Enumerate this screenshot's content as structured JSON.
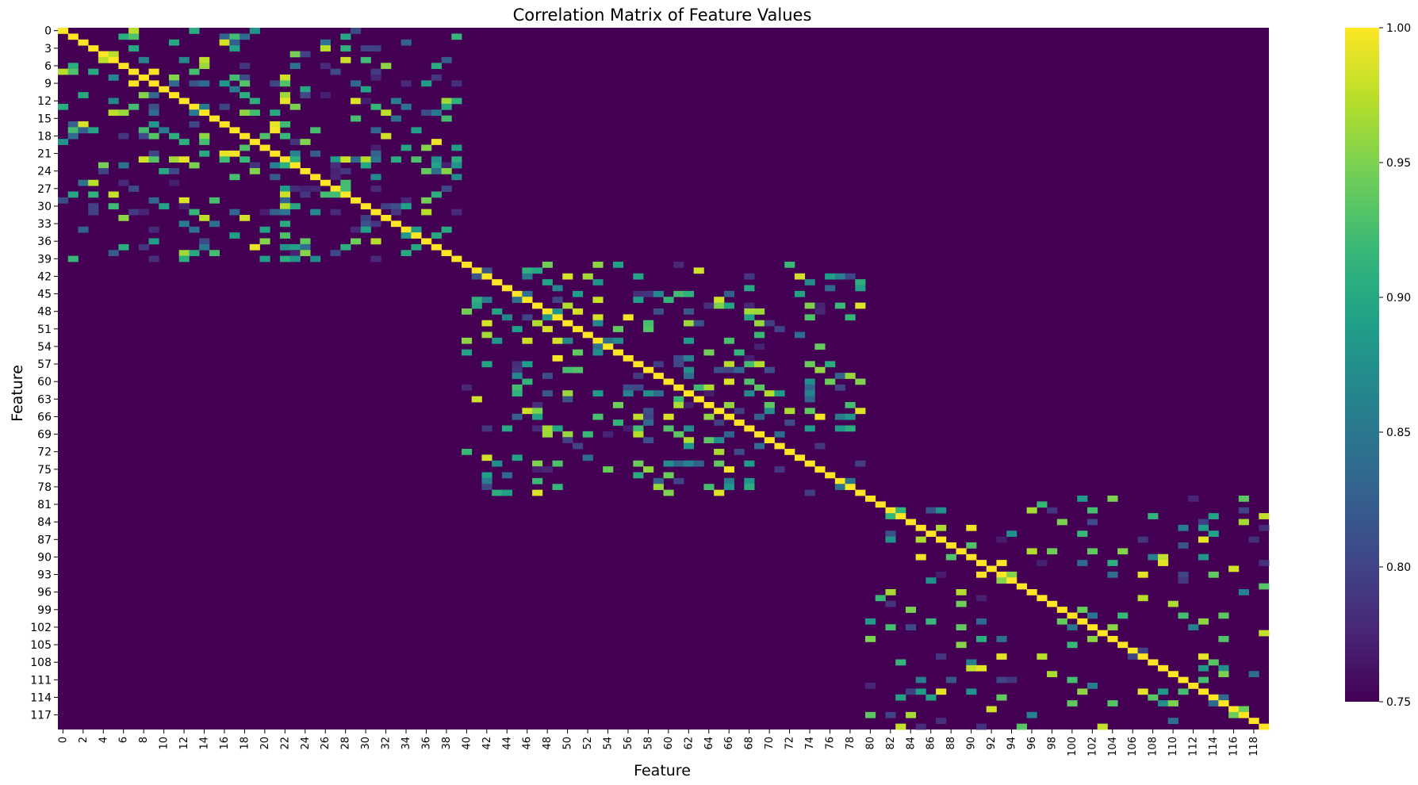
{
  "chart_data": {
    "type": "heatmap",
    "title": "Correlation Matrix of Feature Values",
    "xlabel": "Feature",
    "ylabel": "Feature",
    "n_features": 120,
    "x_tick_labels": [
      "0",
      "2",
      "4",
      "6",
      "8",
      "10",
      "12",
      "14",
      "16",
      "18",
      "20",
      "22",
      "24",
      "26",
      "28",
      "30",
      "32",
      "34",
      "36",
      "38",
      "40",
      "42",
      "44",
      "46",
      "48",
      "50",
      "52",
      "54",
      "56",
      "58",
      "60",
      "62",
      "64",
      "66",
      "68",
      "70",
      "72",
      "74",
      "76",
      "78",
      "80",
      "82",
      "84",
      "86",
      "88",
      "90",
      "92",
      "94",
      "96",
      "98",
      "100",
      "102",
      "104",
      "106",
      "108",
      "110",
      "112",
      "114",
      "116",
      "118"
    ],
    "y_tick_labels": [
      "0",
      "3",
      "6",
      "9",
      "12",
      "15",
      "18",
      "21",
      "24",
      "27",
      "30",
      "33",
      "36",
      "39",
      "42",
      "45",
      "48",
      "51",
      "54",
      "57",
      "60",
      "63",
      "66",
      "69",
      "72",
      "75",
      "78",
      "81",
      "84",
      "87",
      "90",
      "93",
      "96",
      "99",
      "102",
      "105",
      "108",
      "111",
      "114",
      "117"
    ],
    "blocks": [
      {
        "start": 0,
        "end": 40,
        "density": 0.2
      },
      {
        "start": 40,
        "end": 80,
        "density": 0.16
      },
      {
        "start": 80,
        "end": 120,
        "density": 0.1
      }
    ],
    "diagonal_value": 1.0,
    "color_range": [
      0.75,
      1.0
    ],
    "colormap": "viridis",
    "colormap_stops": [
      "#440154",
      "#482878",
      "#3e4a89",
      "#31688e",
      "#26828e",
      "#1f9e89",
      "#35b779",
      "#6ece58",
      "#b5de2b",
      "#fde725"
    ],
    "colorbar_ticks": [
      "0.75",
      "0.80",
      "0.85",
      "0.90",
      "0.95",
      "1.00"
    ],
    "grid": false,
    "legend": "colorbar-right"
  }
}
